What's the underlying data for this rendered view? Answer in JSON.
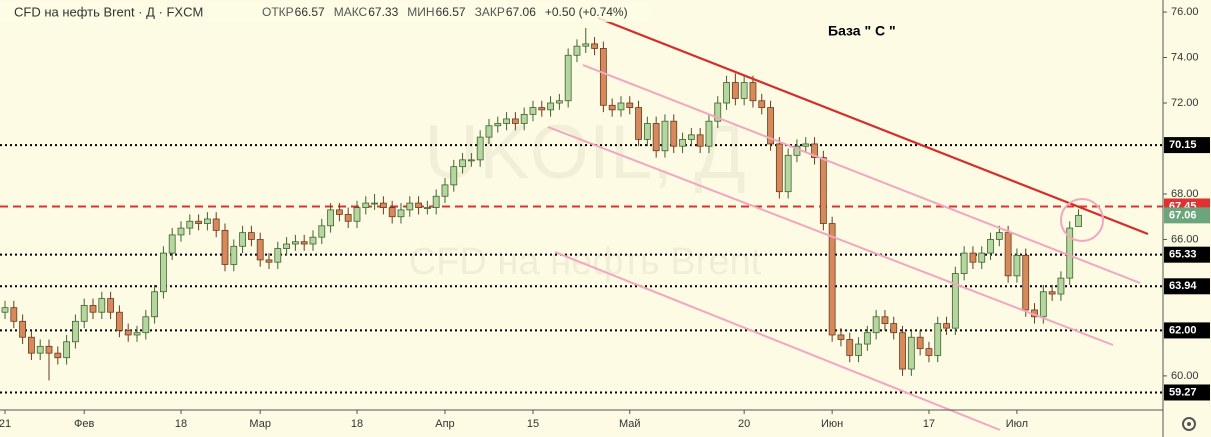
{
  "chart_data": {
    "type": "candlestick",
    "title": "CFD на нефть Brent · Д · FXCM",
    "stats": [
      {
        "label": "ОТКР",
        "value": "66.57"
      },
      {
        "label": "МАКС",
        "value": "67.33"
      },
      {
        "label": "МИН",
        "value": "66.57"
      },
      {
        "label": "ЗАКР",
        "value": "67.06"
      }
    ],
    "change": "+0.50 (+0.74%)",
    "watermark": [
      "UKOIL, Д",
      "CFD на нефть Brent"
    ],
    "annotation": "База \" С \"",
    "up_color": "#b5d69e",
    "up_edge": "#3f6230",
    "down_color": "#d68a5c",
    "down_edge": "#6b3a1f",
    "xlim": [
      -0.57,
      131.6
    ],
    "ylim": [
      58.5,
      76.53
    ],
    "xticks": [
      {
        "value": 0,
        "label": "21"
      },
      {
        "value": 9,
        "label": "Фев"
      },
      {
        "value": 20,
        "label": "18"
      },
      {
        "value": 29,
        "label": "Мар"
      },
      {
        "value": 40,
        "label": "18"
      },
      {
        "value": 50,
        "label": "Апр"
      },
      {
        "value": 60,
        "label": "15"
      },
      {
        "value": 71,
        "label": "Май"
      },
      {
        "value": 84,
        "label": "20"
      },
      {
        "value": 94,
        "label": "Июн"
      },
      {
        "value": 105,
        "label": "17"
      },
      {
        "value": 115,
        "label": "Июл"
      }
    ],
    "yticks": [
      {
        "value": 76,
        "label": "76.00"
      },
      {
        "value": 74,
        "label": "74.00"
      },
      {
        "value": 72,
        "label": "72.00"
      },
      {
        "value": 68,
        "label": "68.00"
      },
      {
        "value": 66,
        "label": "66.00"
      },
      {
        "value": 60,
        "label": "60.00"
      }
    ],
    "levels": [
      {
        "value": 70.15,
        "label": "70.15",
        "color": "#000000",
        "style": "dotted"
      },
      {
        "value": 67.45,
        "label": "67.45",
        "color": "#e03030",
        "style": "dashed"
      },
      {
        "value": 65.33,
        "label": "65.33",
        "color": "#000000",
        "style": "dotted"
      },
      {
        "value": 63.94,
        "label": "63.94",
        "color": "#000000",
        "style": "dotted"
      },
      {
        "value": 62,
        "label": "62.00",
        "color": "#000000",
        "style": "dotted"
      },
      {
        "value": 59.27,
        "label": "59.27",
        "color": "#000000",
        "style": "dotted"
      }
    ],
    "last_price": {
      "value": 67.06,
      "label": "67.06",
      "color": "#6aa57c"
    },
    "candles": {
      "open": [
        62.8,
        63.0,
        62.4,
        61.7,
        61.0,
        61.3,
        61.0,
        60.8,
        61.5,
        62.4,
        63.1,
        62.8,
        63.4,
        62.8,
        62.0,
        61.8,
        61.9,
        62.6,
        63.7,
        65.4,
        66.2,
        66.5,
        66.8,
        66.7,
        66.9,
        66.4,
        64.9,
        65.7,
        66.3,
        66.0,
        65.1,
        65.0,
        65.6,
        65.8,
        65.9,
        65.8,
        66.1,
        66.6,
        67.3,
        67.1,
        66.8,
        67.4,
        67.6,
        67.6,
        67.4,
        67.0,
        67.3,
        67.6,
        67.4,
        67.4,
        67.9,
        68.4,
        69.2,
        69.5,
        69.5,
        70.5,
        71.0,
        71.1,
        71.3,
        71.1,
        71.5,
        71.8,
        71.7,
        72.0,
        72.1,
        74.1,
        74.5,
        74.6,
        74.4,
        71.9,
        71.7,
        72.0,
        71.8,
        70.4,
        71.1,
        69.9,
        71.2,
        70.1,
        70.4,
        70.6,
        70.1,
        71.2,
        72.0,
        72.9,
        72.2,
        72.9,
        72.1,
        71.8,
        70.2,
        68.1,
        69.7,
        70.1,
        70.2,
        69.6,
        66.7,
        61.8,
        61.6,
        60.9,
        61.4,
        61.9,
        62.6,
        62.3,
        61.9,
        60.3,
        61.7,
        61.2,
        60.9,
        62.3,
        62.1,
        64.5,
        65.4,
        65.0,
        65.4,
        66.0,
        66.3,
        64.4,
        65.3,
        62.9,
        62.6,
        63.7,
        63.6,
        64.3,
        66.57
      ],
      "high": [
        63.3,
        63.3,
        62.7,
        62.0,
        61.6,
        61.6,
        61.3,
        61.8,
        62.7,
        63.4,
        63.4,
        63.7,
        63.7,
        63.1,
        62.3,
        62.2,
        62.9,
        64.0,
        65.7,
        66.5,
        66.8,
        67.1,
        67.1,
        67.2,
        67.2,
        66.7,
        66.0,
        66.6,
        66.6,
        66.3,
        65.4,
        65.9,
        66.1,
        66.2,
        66.2,
        66.4,
        66.9,
        67.6,
        67.6,
        67.4,
        67.7,
        67.9,
        68.0,
        67.9,
        67.7,
        67.6,
        67.9,
        67.9,
        67.7,
        68.2,
        68.7,
        69.5,
        69.8,
        69.8,
        70.8,
        71.3,
        71.4,
        71.6,
        71.6,
        71.8,
        72.1,
        72.1,
        72.3,
        72.4,
        74.4,
        74.8,
        75.3,
        74.9,
        74.7,
        72.2,
        72.3,
        72.3,
        72.1,
        71.4,
        71.4,
        71.5,
        71.5,
        70.7,
        70.9,
        70.9,
        71.5,
        72.3,
        73.2,
        73.3,
        73.2,
        73.2,
        72.4,
        72.1,
        70.5,
        70.0,
        70.4,
        70.5,
        70.5,
        69.9,
        67.0,
        62.1,
        61.9,
        61.7,
        62.2,
        62.9,
        62.9,
        62.6,
        62.2,
        62.0,
        62.0,
        61.5,
        62.6,
        62.6,
        64.8,
        65.7,
        65.7,
        65.7,
        66.3,
        66.6,
        66.6,
        65.6,
        65.6,
        63.2,
        64.0,
        64.0,
        64.6,
        66.8,
        67.33
      ],
      "low": [
        62.5,
        62.1,
        61.4,
        60.7,
        60.7,
        59.8,
        60.5,
        60.5,
        61.2,
        62.1,
        62.5,
        62.5,
        62.5,
        61.7,
        61.5,
        61.5,
        61.6,
        62.3,
        63.4,
        65.1,
        65.9,
        66.2,
        66.4,
        66.4,
        66.1,
        64.6,
        64.6,
        65.4,
        65.7,
        64.8,
        64.7,
        64.7,
        65.3,
        65.5,
        65.5,
        65.5,
        65.8,
        66.3,
        66.8,
        66.5,
        66.5,
        67.1,
        67.3,
        67.1,
        66.7,
        66.7,
        67.0,
        67.1,
        67.1,
        67.1,
        67.6,
        68.1,
        68.9,
        69.2,
        69.2,
        70.2,
        70.7,
        70.8,
        70.8,
        70.8,
        71.2,
        71.4,
        71.4,
        71.7,
        71.8,
        73.8,
        74.2,
        74.1,
        71.6,
        71.4,
        71.4,
        71.5,
        70.1,
        70.1,
        69.6,
        69.6,
        69.8,
        69.8,
        70.1,
        69.8,
        69.8,
        70.9,
        71.7,
        71.9,
        71.9,
        71.8,
        71.5,
        69.9,
        67.8,
        67.8,
        69.4,
        69.8,
        69.3,
        66.4,
        61.5,
        61.3,
        60.6,
        60.6,
        61.1,
        61.6,
        62.0,
        61.6,
        60.0,
        60.0,
        60.9,
        60.6,
        60.6,
        61.8,
        61.8,
        64.2,
        64.7,
        64.7,
        65.1,
        65.7,
        64.1,
        64.1,
        62.6,
        62.3,
        62.3,
        63.3,
        63.3,
        64.0,
        66.57
      ],
      "close": [
        63.0,
        62.4,
        61.7,
        61.0,
        61.3,
        61.0,
        60.8,
        61.5,
        62.4,
        63.1,
        62.8,
        63.4,
        62.8,
        62.0,
        61.8,
        61.9,
        62.6,
        63.7,
        65.4,
        66.2,
        66.5,
        66.8,
        66.7,
        66.9,
        66.4,
        64.9,
        65.7,
        66.3,
        66.0,
        65.1,
        65.0,
        65.6,
        65.8,
        65.9,
        65.8,
        66.1,
        66.6,
        67.3,
        67.1,
        66.8,
        67.4,
        67.6,
        67.6,
        67.4,
        67.0,
        67.3,
        67.6,
        67.4,
        67.4,
        67.9,
        68.4,
        69.2,
        69.5,
        69.5,
        70.5,
        71.0,
        71.1,
        71.3,
        71.1,
        71.5,
        71.8,
        71.7,
        72.0,
        72.1,
        74.1,
        74.5,
        74.6,
        74.4,
        71.9,
        71.7,
        72.0,
        71.8,
        70.4,
        71.1,
        69.9,
        71.2,
        70.1,
        70.4,
        70.6,
        70.1,
        71.2,
        72.0,
        72.9,
        72.2,
        72.9,
        72.1,
        71.8,
        70.2,
        68.1,
        69.7,
        70.1,
        70.2,
        69.6,
        66.7,
        61.8,
        61.6,
        60.9,
        61.4,
        61.9,
        62.6,
        62.3,
        61.9,
        60.3,
        61.7,
        61.2,
        60.9,
        62.3,
        62.1,
        64.5,
        65.4,
        65.0,
        65.4,
        66.0,
        66.3,
        64.4,
        65.3,
        62.9,
        62.6,
        63.7,
        63.6,
        64.3,
        66.5,
        67.06
      ]
    }
  }
}
